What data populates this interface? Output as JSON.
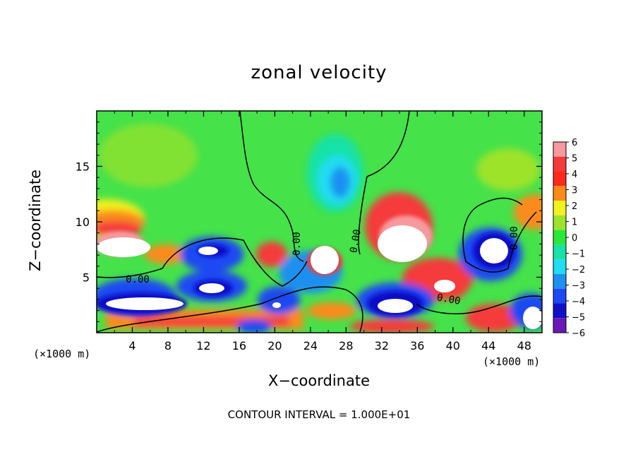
{
  "chart_data": {
    "type": "heatmap",
    "title": "zonal velocity",
    "xlabel": "X−coordinate",
    "ylabel": "Z−coordinate",
    "x_unit_left": "(×1000 m)",
    "x_unit_right": "(×1000 m)",
    "footer": "CONTOUR INTERVAL = 1.000E+01",
    "x_ticks": [
      "4",
      "8",
      "12",
      "16",
      "20",
      "24",
      "28",
      "32",
      "36",
      "40",
      "44",
      "48"
    ],
    "x_tick_values": [
      4,
      8,
      12,
      16,
      20,
      24,
      28,
      32,
      36,
      40,
      44,
      48
    ],
    "y_ticks": [
      "5",
      "10",
      "15"
    ],
    "y_tick_values": [
      5,
      10,
      15
    ],
    "xlim": [
      0,
      50
    ],
    "ylim": [
      0,
      20
    ],
    "colorbar": {
      "labels": [
        "6",
        "5",
        "4",
        "3",
        "2",
        "1",
        "0",
        "−1",
        "−2",
        "−3",
        "−4",
        "−5",
        "−6"
      ],
      "values": [
        6,
        5,
        4,
        3,
        2,
        1,
        0,
        -1,
        -2,
        -3,
        -4,
        -5,
        -6
      ],
      "colors": [
        "#f79aa0",
        "#f53a3a",
        "#fc2a1c",
        "#fb8a1a",
        "#f2f21e",
        "#9de32a",
        "#2ae83a",
        "#19e2a6",
        "#21dcf2",
        "#1e90f0",
        "#1e48f2",
        "#1010c8",
        "#6a18b6"
      ]
    },
    "contour_labels": [
      "0.00",
      "0.00",
      "0.00",
      "0.00",
      "0.00"
    ],
    "colors": {
      "background": "#ffffff",
      "field_base": "#45e24a"
    }
  }
}
